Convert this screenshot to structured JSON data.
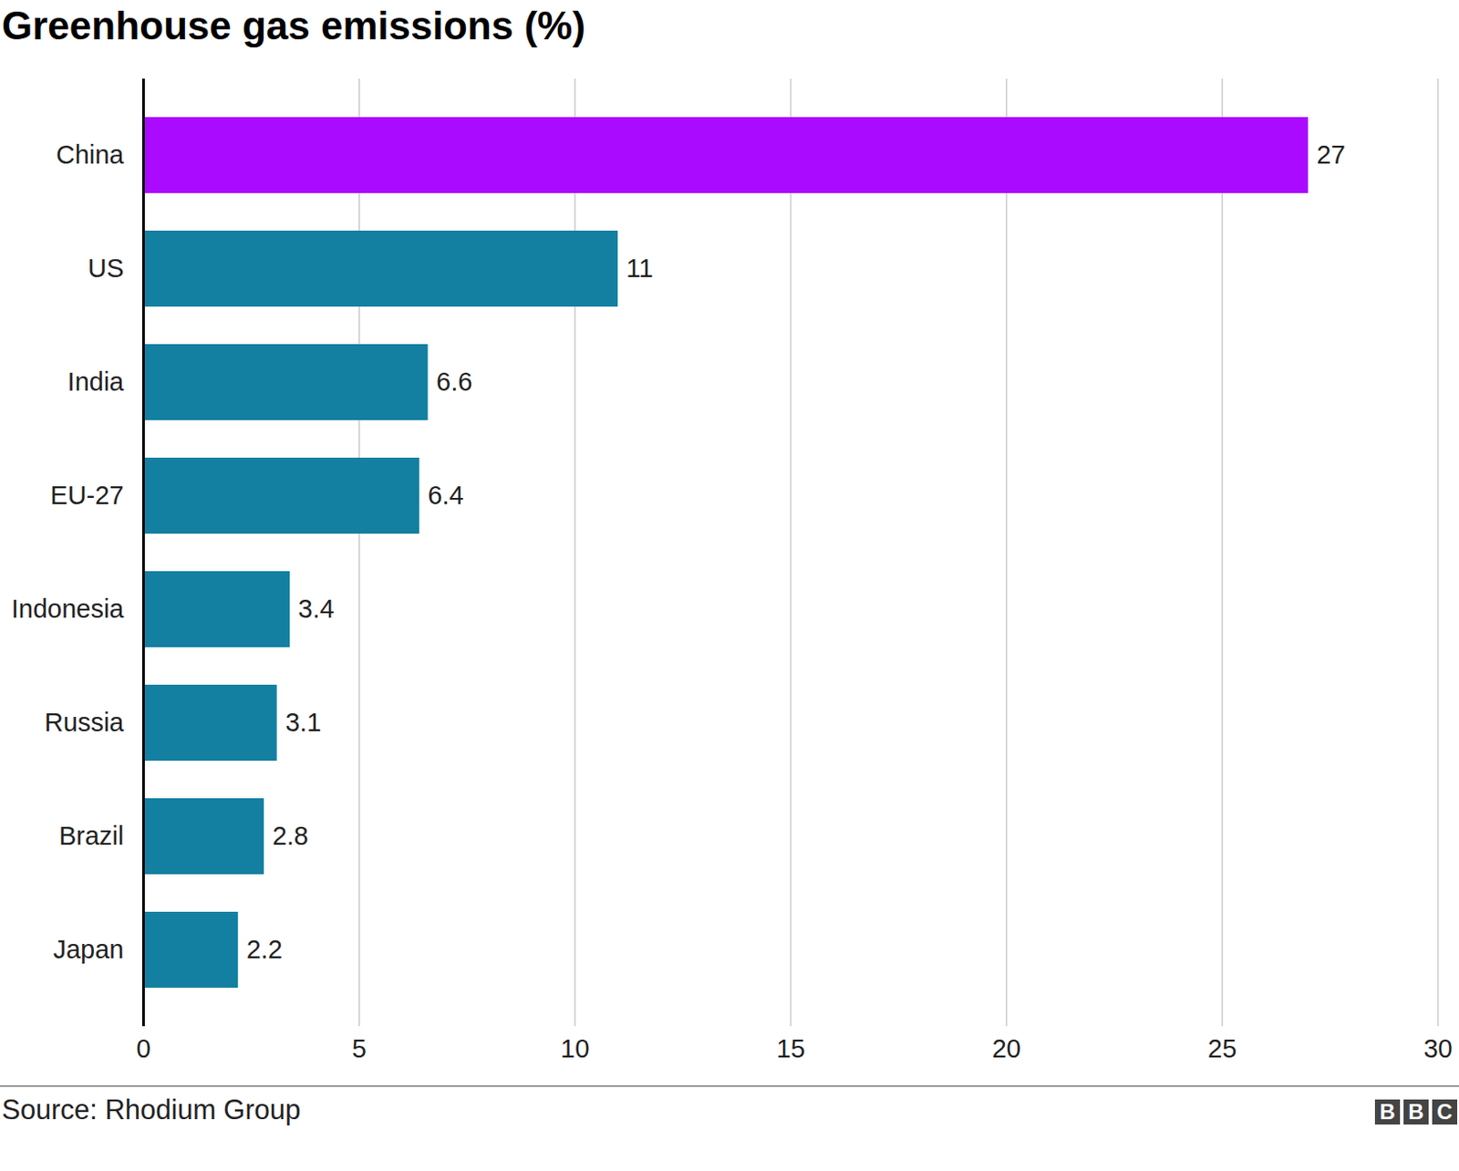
{
  "chart_data": {
    "type": "bar",
    "orientation": "horizontal",
    "title": "Greenhouse gas emissions (%)",
    "source": "Source: Rhodium Group",
    "credit": "BBC",
    "categories": [
      "China",
      "US",
      "India",
      "EU-27",
      "Indonesia",
      "Russia",
      "Brazil",
      "Japan"
    ],
    "values": [
      27,
      11,
      6.6,
      6.4,
      3.4,
      3.1,
      2.8,
      2.2
    ],
    "colors": [
      "#aa0aff",
      "#1380a1",
      "#1380a1",
      "#1380a1",
      "#1380a1",
      "#1380a1",
      "#1380a1",
      "#1380a1"
    ],
    "xlim": [
      0,
      30
    ],
    "xticks": [
      0,
      5,
      10,
      15,
      20,
      25,
      30
    ],
    "grid": true,
    "data_labels": true
  }
}
